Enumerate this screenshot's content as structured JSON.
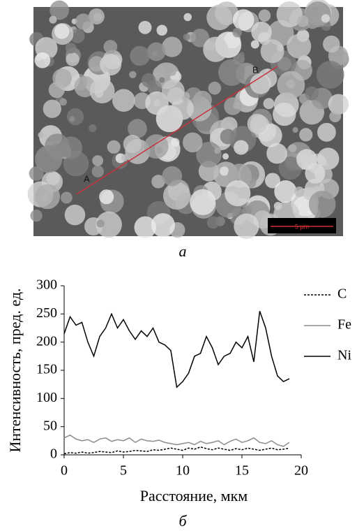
{
  "image": {
    "label_a": "A",
    "label_b": "B",
    "scale_bar": "5 μm",
    "caption": "а"
  },
  "chart_data": {
    "type": "line",
    "x": [
      0,
      0.5,
      1,
      1.5,
      2,
      2.5,
      3,
      3.5,
      4,
      4.5,
      5,
      5.5,
      6,
      6.5,
      7,
      7.5,
      8,
      8.5,
      9,
      9.5,
      10,
      10.5,
      11,
      11.5,
      12,
      12.5,
      13,
      13.5,
      14,
      14.5,
      15,
      15.5,
      16,
      16.5,
      17,
      17.5,
      18,
      18.5,
      19
    ],
    "series": [
      {
        "name": "C",
        "color": "#000000",
        "dash": true,
        "values": [
          2,
          4,
          3,
          5,
          3,
          4,
          6,
          5,
          4,
          7,
          5,
          6,
          8,
          7,
          6,
          9,
          8,
          10,
          12,
          10,
          8,
          12,
          10,
          14,
          11,
          9,
          12,
          10,
          8,
          11,
          9,
          12,
          10,
          8,
          10,
          12,
          9,
          10,
          12
        ]
      },
      {
        "name": "Fe",
        "color": "#8c8c8c",
        "dash": false,
        "values": [
          30,
          35,
          28,
          25,
          27,
          22,
          28,
          30,
          24,
          27,
          25,
          30,
          22,
          28,
          25,
          24,
          26,
          22,
          20,
          18,
          20,
          22,
          18,
          24,
          20,
          22,
          25,
          18,
          24,
          28,
          22,
          25,
          30,
          22,
          20,
          25,
          18,
          15,
          22
        ]
      },
      {
        "name": "Ni",
        "color": "#000000",
        "dash": false,
        "values": [
          215,
          245,
          230,
          235,
          200,
          175,
          210,
          225,
          250,
          225,
          240,
          220,
          205,
          220,
          210,
          225,
          200,
          195,
          185,
          120,
          130,
          145,
          175,
          180,
          210,
          190,
          160,
          175,
          180,
          200,
          190,
          210,
          165,
          255,
          225,
          175,
          140,
          130,
          135
        ]
      }
    ],
    "xlim": [
      0,
      20
    ],
    "xticks": [
      0,
      5,
      10,
      15,
      20
    ],
    "ylim": [
      0,
      300
    ],
    "yticks": [
      0,
      50,
      100,
      150,
      200,
      250,
      300
    ],
    "x_label": "Расстояние, мкм",
    "y_label": "Интенсивность, пред. ед.",
    "legend": "right"
  },
  "chart_caption": "б"
}
